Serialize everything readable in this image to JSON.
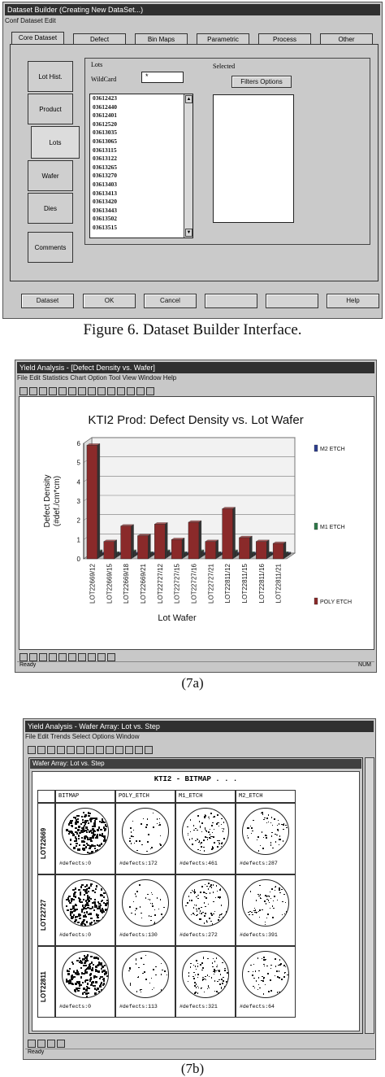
{
  "fig6": {
    "title": "Dataset Builder (Creating New DataSet...)",
    "menu": "Conf Dataset Edit",
    "tabs": [
      "Core Dataset",
      "Defect",
      "Bin Maps",
      "Parametric",
      "Process",
      "Other"
    ],
    "side_tabs": [
      "Lot Hist.",
      "Product",
      "Lots",
      "Wafer",
      "Dies",
      "Comments"
    ],
    "list_label": "Lots",
    "wildcard_label": "WildCard",
    "wildcard_value": "*",
    "selected_label": "Selected",
    "filters_button": "Filters Options",
    "lots": [
      "03612423",
      "03612440",
      "03612401",
      "03612520",
      "03613035",
      "03613065",
      "03613115",
      "03613122",
      "03613265",
      "03613270",
      "03613403",
      "03613413",
      "03613420",
      "03613443",
      "03613502",
      "03613515"
    ],
    "bottom_buttons": [
      "Dataset",
      "OK",
      "Cancel",
      "",
      "",
      "Help"
    ],
    "caption": "Figure 6.  Dataset Builder Interface."
  },
  "fig7a": {
    "title": "Yield Analysis - [Defect Density vs. Wafer]",
    "menu": "File Edit Statistics Chart Option Tool View Window Help",
    "status": "Ready",
    "status_right": "NUM",
    "caption": "(7a)"
  },
  "fig7b": {
    "title": "Yield Analysis - Wafer Array: Lot vs. Step",
    "menu": "File Edit Trends Select Options Window",
    "inner_title": "Wafer Array: Lot vs. Step",
    "grid_title": "KTI2  -  BITMAP . . .",
    "columns": [
      "BITMAP",
      "POLY_ETCH",
      "M1_ETCH",
      "M2_ETCH"
    ],
    "rows": [
      {
        "lot": "LOT22669",
        "defects": [
          "#defects:0",
          "#defects:172",
          "#defects:461",
          "#defects:287"
        ]
      },
      {
        "lot": "LOT22727",
        "defects": [
          "#defects:0",
          "#defects:130",
          "#defects:272",
          "#defects:391"
        ]
      },
      {
        "lot": "LOT22811",
        "defects": [
          "#defects:0",
          "#defects:113",
          "#defects:321",
          "#defects:64"
        ]
      }
    ],
    "status": "Ready",
    "caption": "(7b)"
  },
  "chart_data": {
    "type": "bar",
    "title": "KTI2 Prod: Defect Density vs. Lot Wafer",
    "xlabel": "Lot Wafer",
    "ylabel": "Defect Density (#def./cm*cm)",
    "ylim": [
      0,
      6
    ],
    "yticks": [
      "0",
      "1",
      "2",
      "3",
      "4",
      "5",
      "6"
    ],
    "categories": [
      "LOT22669/12",
      "LOT22669/15",
      "LOT22669/18",
      "LOT22669/21",
      "LOT22727/12",
      "LOT22727/15",
      "LOT22727/16",
      "LOT22727/21",
      "LOT22811/12",
      "LOT22811/15",
      "LOT22811/16",
      "LOT22811/21"
    ],
    "series": [
      {
        "name": "POLY ETCH",
        "values": [
          5.9,
          0.9,
          1.7,
          1.2,
          1.8,
          1.0,
          1.9,
          0.9,
          2.6,
          1.1,
          0.9,
          0.8
        ],
        "color": "#8a2a2a"
      },
      {
        "name": "M1 ETCH",
        "values": [
          0.3,
          0.2,
          0.3,
          0.2,
          0.3,
          0.2,
          0.3,
          0.2,
          0.3,
          0.2,
          0.2,
          0.2
        ],
        "color": "#2f7a4a"
      },
      {
        "name": "M2 ETCH",
        "values": [
          0.1,
          0.1,
          0.1,
          0.1,
          0.1,
          0.1,
          0.1,
          0.1,
          0.1,
          0.1,
          0.1,
          0.1
        ],
        "color": "#2e3f8f"
      }
    ],
    "legend": "right"
  }
}
